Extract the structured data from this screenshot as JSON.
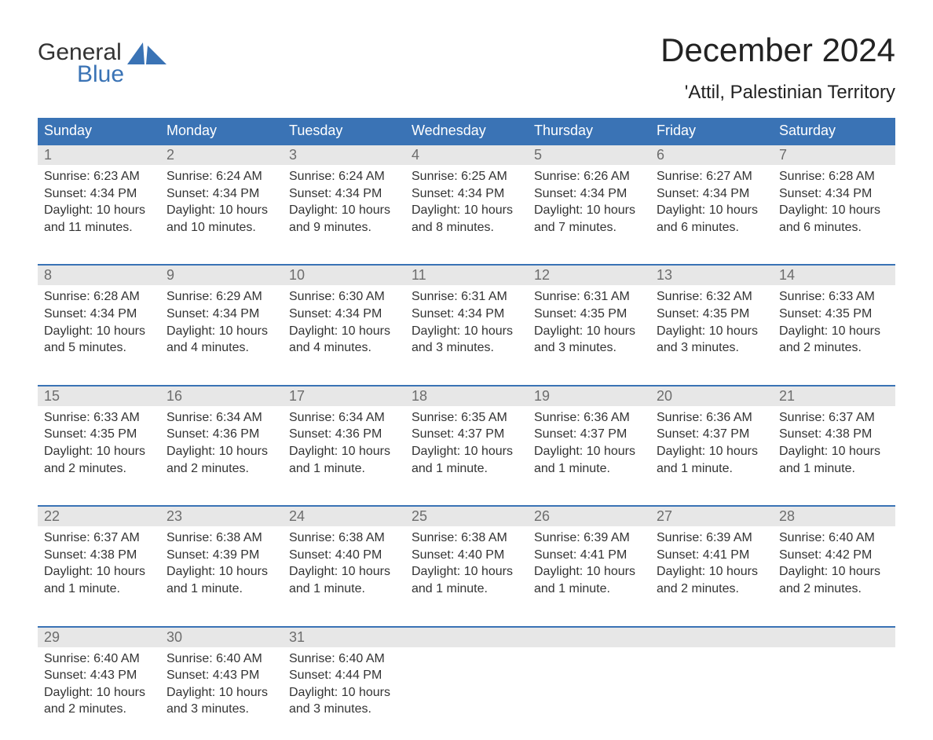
{
  "brand": {
    "top": "General",
    "bottom": "Blue",
    "sail_color": "#3a73b5"
  },
  "title": "December 2024",
  "location": "'Attil, Palestinian Territory",
  "colors": {
    "header_bg": "#3a73b5",
    "header_text": "#ffffff",
    "daynum_bg": "#e7e7e7",
    "daynum_text": "#6d6d6d",
    "body_text": "#333333",
    "rule": "#3a73b5",
    "page_bg": "#ffffff"
  },
  "weekdays": [
    "Sunday",
    "Monday",
    "Tuesday",
    "Wednesday",
    "Thursday",
    "Friday",
    "Saturday"
  ],
  "weeks": [
    [
      {
        "n": "1",
        "sr": "Sunrise: 6:23 AM",
        "ss": "Sunset: 4:34 PM",
        "d1": "Daylight: 10 hours",
        "d2": "and 11 minutes."
      },
      {
        "n": "2",
        "sr": "Sunrise: 6:24 AM",
        "ss": "Sunset: 4:34 PM",
        "d1": "Daylight: 10 hours",
        "d2": "and 10 minutes."
      },
      {
        "n": "3",
        "sr": "Sunrise: 6:24 AM",
        "ss": "Sunset: 4:34 PM",
        "d1": "Daylight: 10 hours",
        "d2": "and 9 minutes."
      },
      {
        "n": "4",
        "sr": "Sunrise: 6:25 AM",
        "ss": "Sunset: 4:34 PM",
        "d1": "Daylight: 10 hours",
        "d2": "and 8 minutes."
      },
      {
        "n": "5",
        "sr": "Sunrise: 6:26 AM",
        "ss": "Sunset: 4:34 PM",
        "d1": "Daylight: 10 hours",
        "d2": "and 7 minutes."
      },
      {
        "n": "6",
        "sr": "Sunrise: 6:27 AM",
        "ss": "Sunset: 4:34 PM",
        "d1": "Daylight: 10 hours",
        "d2": "and 6 minutes."
      },
      {
        "n": "7",
        "sr": "Sunrise: 6:28 AM",
        "ss": "Sunset: 4:34 PM",
        "d1": "Daylight: 10 hours",
        "d2": "and 6 minutes."
      }
    ],
    [
      {
        "n": "8",
        "sr": "Sunrise: 6:28 AM",
        "ss": "Sunset: 4:34 PM",
        "d1": "Daylight: 10 hours",
        "d2": "and 5 minutes."
      },
      {
        "n": "9",
        "sr": "Sunrise: 6:29 AM",
        "ss": "Sunset: 4:34 PM",
        "d1": "Daylight: 10 hours",
        "d2": "and 4 minutes."
      },
      {
        "n": "10",
        "sr": "Sunrise: 6:30 AM",
        "ss": "Sunset: 4:34 PM",
        "d1": "Daylight: 10 hours",
        "d2": "and 4 minutes."
      },
      {
        "n": "11",
        "sr": "Sunrise: 6:31 AM",
        "ss": "Sunset: 4:34 PM",
        "d1": "Daylight: 10 hours",
        "d2": "and 3 minutes."
      },
      {
        "n": "12",
        "sr": "Sunrise: 6:31 AM",
        "ss": "Sunset: 4:35 PM",
        "d1": "Daylight: 10 hours",
        "d2": "and 3 minutes."
      },
      {
        "n": "13",
        "sr": "Sunrise: 6:32 AM",
        "ss": "Sunset: 4:35 PM",
        "d1": "Daylight: 10 hours",
        "d2": "and 3 minutes."
      },
      {
        "n": "14",
        "sr": "Sunrise: 6:33 AM",
        "ss": "Sunset: 4:35 PM",
        "d1": "Daylight: 10 hours",
        "d2": "and 2 minutes."
      }
    ],
    [
      {
        "n": "15",
        "sr": "Sunrise: 6:33 AM",
        "ss": "Sunset: 4:35 PM",
        "d1": "Daylight: 10 hours",
        "d2": "and 2 minutes."
      },
      {
        "n": "16",
        "sr": "Sunrise: 6:34 AM",
        "ss": "Sunset: 4:36 PM",
        "d1": "Daylight: 10 hours",
        "d2": "and 2 minutes."
      },
      {
        "n": "17",
        "sr": "Sunrise: 6:34 AM",
        "ss": "Sunset: 4:36 PM",
        "d1": "Daylight: 10 hours",
        "d2": "and 1 minute."
      },
      {
        "n": "18",
        "sr": "Sunrise: 6:35 AM",
        "ss": "Sunset: 4:37 PM",
        "d1": "Daylight: 10 hours",
        "d2": "and 1 minute."
      },
      {
        "n": "19",
        "sr": "Sunrise: 6:36 AM",
        "ss": "Sunset: 4:37 PM",
        "d1": "Daylight: 10 hours",
        "d2": "and 1 minute."
      },
      {
        "n": "20",
        "sr": "Sunrise: 6:36 AM",
        "ss": "Sunset: 4:37 PM",
        "d1": "Daylight: 10 hours",
        "d2": "and 1 minute."
      },
      {
        "n": "21",
        "sr": "Sunrise: 6:37 AM",
        "ss": "Sunset: 4:38 PM",
        "d1": "Daylight: 10 hours",
        "d2": "and 1 minute."
      }
    ],
    [
      {
        "n": "22",
        "sr": "Sunrise: 6:37 AM",
        "ss": "Sunset: 4:38 PM",
        "d1": "Daylight: 10 hours",
        "d2": "and 1 minute."
      },
      {
        "n": "23",
        "sr": "Sunrise: 6:38 AM",
        "ss": "Sunset: 4:39 PM",
        "d1": "Daylight: 10 hours",
        "d2": "and 1 minute."
      },
      {
        "n": "24",
        "sr": "Sunrise: 6:38 AM",
        "ss": "Sunset: 4:40 PM",
        "d1": "Daylight: 10 hours",
        "d2": "and 1 minute."
      },
      {
        "n": "25",
        "sr": "Sunrise: 6:38 AM",
        "ss": "Sunset: 4:40 PM",
        "d1": "Daylight: 10 hours",
        "d2": "and 1 minute."
      },
      {
        "n": "26",
        "sr": "Sunrise: 6:39 AM",
        "ss": "Sunset: 4:41 PM",
        "d1": "Daylight: 10 hours",
        "d2": "and 1 minute."
      },
      {
        "n": "27",
        "sr": "Sunrise: 6:39 AM",
        "ss": "Sunset: 4:41 PM",
        "d1": "Daylight: 10 hours",
        "d2": "and 2 minutes."
      },
      {
        "n": "28",
        "sr": "Sunrise: 6:40 AM",
        "ss": "Sunset: 4:42 PM",
        "d1": "Daylight: 10 hours",
        "d2": "and 2 minutes."
      }
    ],
    [
      {
        "n": "29",
        "sr": "Sunrise: 6:40 AM",
        "ss": "Sunset: 4:43 PM",
        "d1": "Daylight: 10 hours",
        "d2": "and 2 minutes."
      },
      {
        "n": "30",
        "sr": "Sunrise: 6:40 AM",
        "ss": "Sunset: 4:43 PM",
        "d1": "Daylight: 10 hours",
        "d2": "and 3 minutes."
      },
      {
        "n": "31",
        "sr": "Sunrise: 6:40 AM",
        "ss": "Sunset: 4:44 PM",
        "d1": "Daylight: 10 hours",
        "d2": "and 3 minutes."
      },
      null,
      null,
      null,
      null
    ]
  ]
}
